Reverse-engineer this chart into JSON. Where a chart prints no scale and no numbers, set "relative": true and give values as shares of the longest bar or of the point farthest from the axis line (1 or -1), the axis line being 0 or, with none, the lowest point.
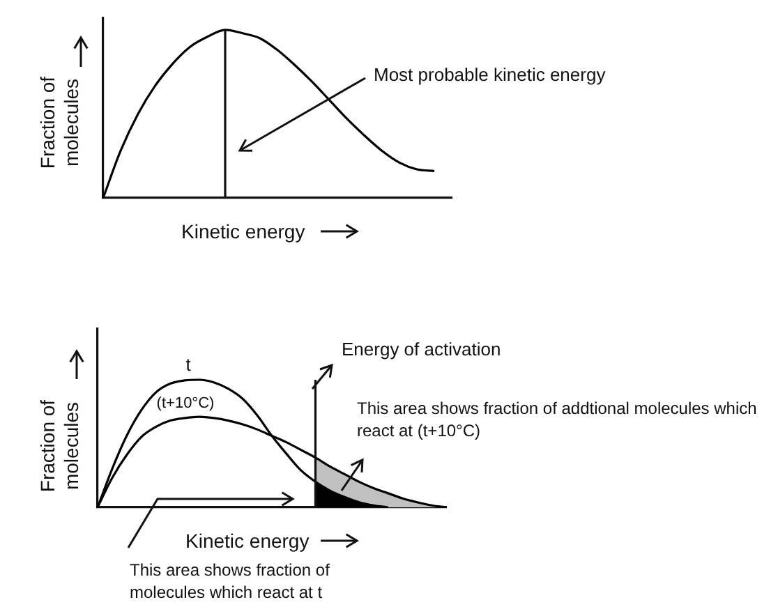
{
  "chart_data": [
    {
      "type": "line",
      "xlabel": "Kinetic energy",
      "ylabel": "Fraction of molecules",
      "relative": true,
      "marker": "none",
      "categories": [
        null,
        null,
        null,
        null,
        null,
        null,
        null,
        null,
        null,
        null,
        null,
        null,
        null,
        null,
        null,
        null,
        null,
        null,
        null,
        null,
        null
      ],
      "series": [
        {
          "color": "#000000",
          "values": [
            0,
            0.28,
            0.5,
            0.67,
            0.8,
            0.9,
            0.96,
            1,
            0.98,
            0.95,
            0.88,
            0.79,
            0.69,
            0.58,
            0.47,
            0.37,
            0.28,
            0.21,
            0.17,
            0.16,
            null
          ]
        }
      ],
      "annotations": [
        "Most probable kinetic energy"
      ]
    },
    {
      "type": "line",
      "xlabel": "Kinetic energy",
      "ylabel": "Fraction of molecules",
      "relative": true,
      "marker": "none",
      "categories": [
        null,
        null,
        null,
        null,
        null,
        null,
        null,
        null,
        null,
        null,
        null,
        null,
        null,
        null,
        null,
        null,
        null,
        null,
        null,
        null,
        null,
        null,
        null,
        null,
        null
      ],
      "series": [
        {
          "name": "t",
          "color": "#000000",
          "values": [
            0,
            0.3,
            0.56,
            0.76,
            0.9,
            0.97,
            0.995,
            1,
            0.98,
            0.93,
            0.85,
            0.72,
            0.56,
            0.42,
            0.29,
            0.2,
            0.13,
            0.08,
            0.04,
            0.015,
            0,
            null,
            null,
            null,
            null
          ]
        },
        {
          "name": "(t+10°C)",
          "color": "#000000",
          "values": [
            0,
            0.23,
            0.41,
            0.55,
            0.63,
            0.68,
            0.7,
            0.71,
            0.7,
            0.68,
            0.65,
            0.61,
            0.56,
            0.51,
            0.45,
            0.39,
            0.32,
            0.26,
            0.2,
            0.15,
            0.11,
            0.07,
            0.04,
            0.015,
            0
          ]
        },
        {
          "type": "area",
          "color": "#c0c0c0",
          "values": [
            null,
            null,
            null,
            null,
            null,
            null,
            null,
            null,
            null,
            null,
            null,
            null,
            null,
            null,
            null,
            0.39,
            0.32,
            0.26,
            0.2,
            0.15,
            0.11,
            0.07,
            0.04,
            0.015,
            0
          ]
        },
        {
          "type": "area",
          "color": "#000000",
          "values": [
            null,
            null,
            null,
            null,
            null,
            null,
            null,
            null,
            null,
            null,
            null,
            null,
            null,
            null,
            null,
            0.2,
            0.13,
            0.08,
            0.04,
            0.015,
            0,
            null,
            null,
            null,
            null
          ]
        }
      ],
      "annotations": [
        "Energy of activation",
        "This area shows fraction of addtional molecules which react at (t+10°C)",
        "This area shows fraction of molecules which react at t"
      ]
    }
  ]
}
